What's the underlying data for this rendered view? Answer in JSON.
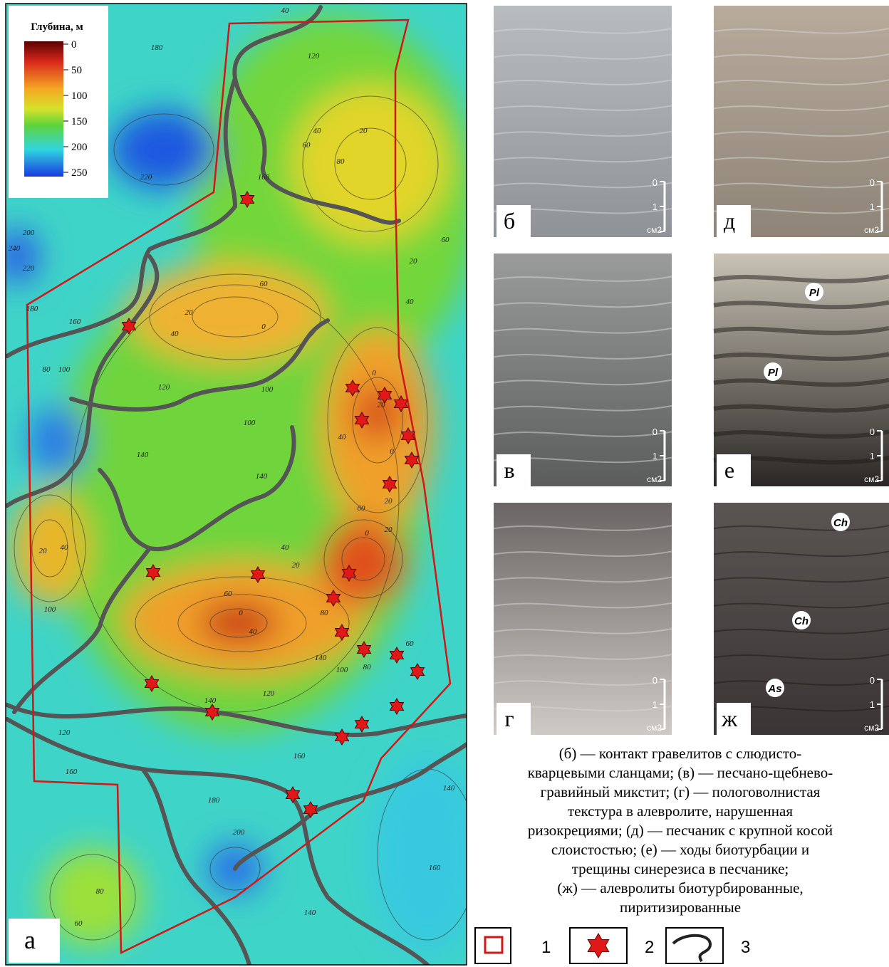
{
  "map": {
    "panel_label": "а",
    "legend": {
      "title": "Глубина, м",
      "ticks": [
        0,
        50,
        100,
        150,
        200,
        250
      ],
      "range": [
        0,
        250
      ]
    },
    "contour_labels": [
      "180",
      "220",
      "120",
      "40",
      "20",
      "40",
      "60",
      "80",
      "160",
      "200",
      "240",
      "220",
      "180",
      "160",
      "100",
      "80",
      "120",
      "140",
      "100",
      "140",
      "0",
      "20",
      "40",
      "60",
      "100",
      "20",
      "40",
      "60",
      "0",
      "20",
      "0",
      "20",
      "60",
      "40",
      "20",
      "40",
      "100",
      "20",
      "40",
      "0",
      "20",
      "60",
      "0",
      "40",
      "80",
      "140",
      "100",
      "80",
      "60",
      "120",
      "140",
      "160",
      "180",
      "200",
      "120",
      "160",
      "140",
      "160",
      "140",
      "80",
      "60"
    ]
  },
  "photos": [
    {
      "label": "б",
      "scale": [
        "0",
        "1",
        "см2"
      ]
    },
    {
      "label": "д",
      "scale": [
        "0",
        "1",
        "см2"
      ]
    },
    {
      "label": "в",
      "scale": [
        "0",
        "1",
        "см2"
      ],
      "marks": []
    },
    {
      "label": "е",
      "scale": [
        "0",
        "1",
        "см2"
      ],
      "marks": [
        "Pl",
        "Pl"
      ]
    },
    {
      "label": "г",
      "scale": [
        "0",
        "1",
        "см2"
      ]
    },
    {
      "label": "ж",
      "scale": [
        "0",
        "1",
        "см2"
      ],
      "marks": [
        "Ch",
        "Ch",
        "As"
      ]
    }
  ],
  "caption": [
    "(б) — контакт гравелитов с слюдисто-",
    "кварцевыми сланцами; (в) — песчано-щебнево-",
    "гравийный микстит; (г) — пологоволнистая",
    "текстура в алевролите, нарушенная",
    "ризокрециями; (д) — песчаник с крупной косой",
    "слоистостью; (е) — ходы биотурбации и",
    "трещины синерезиса в песчанике;",
    "(ж) — алевролиты биотурбированные,",
    "пиритизированные"
  ],
  "symbols": [
    "1",
    "2",
    "3"
  ]
}
